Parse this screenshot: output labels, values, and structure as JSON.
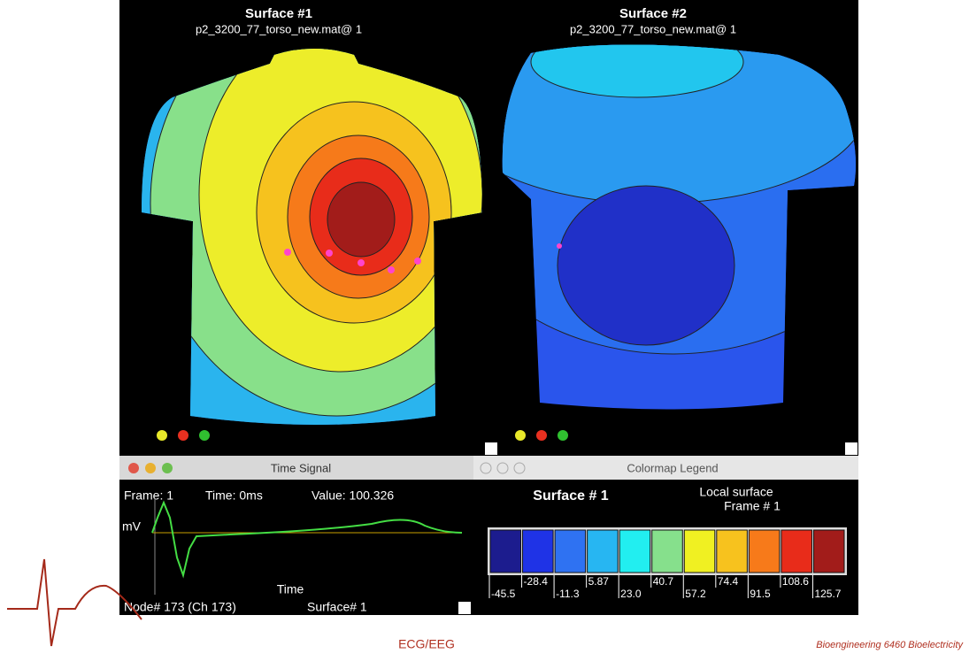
{
  "surfaces": [
    {
      "title": "Surface #1",
      "subtitle": "p2_3200_77_torso_new.mat@ 1"
    },
    {
      "title": "Surface #2",
      "subtitle": "p2_3200_77_torso_new.mat@ 1"
    }
  ],
  "time_signal": {
    "window_title": "Time Signal",
    "frame": "Frame: 1",
    "time": "Time: 0ms",
    "value": "Value: 100.326",
    "y_label": "mV",
    "x_label": "Time",
    "node": "Node# 173 (Ch 173)",
    "surface": "Surface# 1"
  },
  "colormap_legend": {
    "window_title": "Colormap Legend",
    "surface": "Surface # 1",
    "mode": "Local surface",
    "frame": "Frame # 1",
    "labels": [
      "-45.5",
      "-28.4",
      "-11.3",
      "5.87",
      "23.0",
      "40.7",
      "57.2",
      "74.4",
      "91.5",
      "108.6",
      "125.7"
    ],
    "colors": [
      "#1c1c8e",
      "#1f33e6",
      "#2f72f2",
      "#27b6f2",
      "#22eef0",
      "#86e08c",
      "#f0f022",
      "#f7c21e",
      "#f77a1a",
      "#e82c1a",
      "#a21c1a"
    ]
  },
  "footer": {
    "center": "ECG/EEG",
    "right": "Bioengineering 6460 Bioelectricity"
  }
}
